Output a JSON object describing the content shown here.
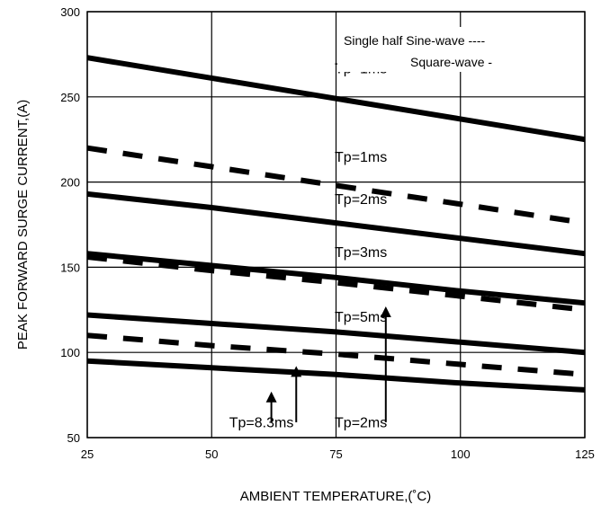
{
  "chart_data": {
    "type": "line",
    "xlabel": "AMBIENT TEMPERATURE,(˚C)",
    "ylabel": "PEAK FORWARD SURGE CURRENT,(A)",
    "xlim": [
      25,
      125
    ],
    "ylim": [
      50,
      300
    ],
    "xticks": [
      "25",
      "50",
      "75",
      "100",
      "125"
    ],
    "yticks": [
      "50",
      "100",
      "150",
      "200",
      "250",
      "300"
    ],
    "grid": true,
    "legend": {
      "placement": "top-right",
      "entries": [
        {
          "label": "Single half Sine-wave ----",
          "style": "dashed"
        },
        {
          "label": "Square-wave -",
          "style": "solid"
        }
      ]
    },
    "series": [
      {
        "style": "solid",
        "x": [
          25,
          50,
          75,
          100,
          125
        ],
        "y": [
          273,
          261,
          249,
          237,
          225
        ]
      },
      {
        "style": "dashed",
        "x": [
          25,
          50,
          75,
          100,
          125
        ],
        "y": [
          220,
          209,
          198,
          187,
          176
        ]
      },
      {
        "style": "solid",
        "x": [
          25,
          50,
          75,
          100,
          125
        ],
        "y": [
          193,
          185,
          176,
          167,
          158
        ]
      },
      {
        "style": "solid",
        "x": [
          25,
          50,
          75,
          100,
          125
        ],
        "y": [
          158,
          151,
          144,
          136,
          129
        ]
      },
      {
        "style": "dashed",
        "x": [
          25,
          50,
          75,
          100,
          125
        ],
        "y": [
          156,
          148,
          141,
          133,
          125
        ]
      },
      {
        "style": "solid",
        "x": [
          25,
          50,
          75,
          100,
          125
        ],
        "y": [
          122,
          117,
          112,
          106,
          100
        ]
      },
      {
        "style": "dashed",
        "x": [
          25,
          50,
          75,
          100,
          125
        ],
        "y": [
          110,
          104,
          99,
          93,
          87
        ]
      },
      {
        "style": "solid",
        "x": [
          25,
          50,
          75,
          100,
          125
        ],
        "y": [
          95,
          91,
          87,
          82,
          78
        ]
      }
    ],
    "annotations": [
      {
        "text": "Tp=1ms",
        "x": 80,
        "y": 264
      },
      {
        "text": "Tp=1ms",
        "x": 80,
        "y": 212
      },
      {
        "text": "Tp=2ms",
        "x": 80,
        "y": 187
      },
      {
        "text": "Tp=3ms",
        "x": 80,
        "y": 156
      },
      {
        "text": "Tp=5ms",
        "x": 80,
        "y": 118
      },
      {
        "text": "Tp=8.3ms",
        "x": 60,
        "y": 56
      },
      {
        "text": "Tp=2ms",
        "x": 80,
        "y": 56
      }
    ],
    "arrows": [
      {
        "x": 62,
        "from_y": 59,
        "to_y": 77
      },
      {
        "x": 67,
        "from_y": 59,
        "to_y": 92
      },
      {
        "x": 85,
        "from_y": 59,
        "to_y": 127
      }
    ]
  }
}
